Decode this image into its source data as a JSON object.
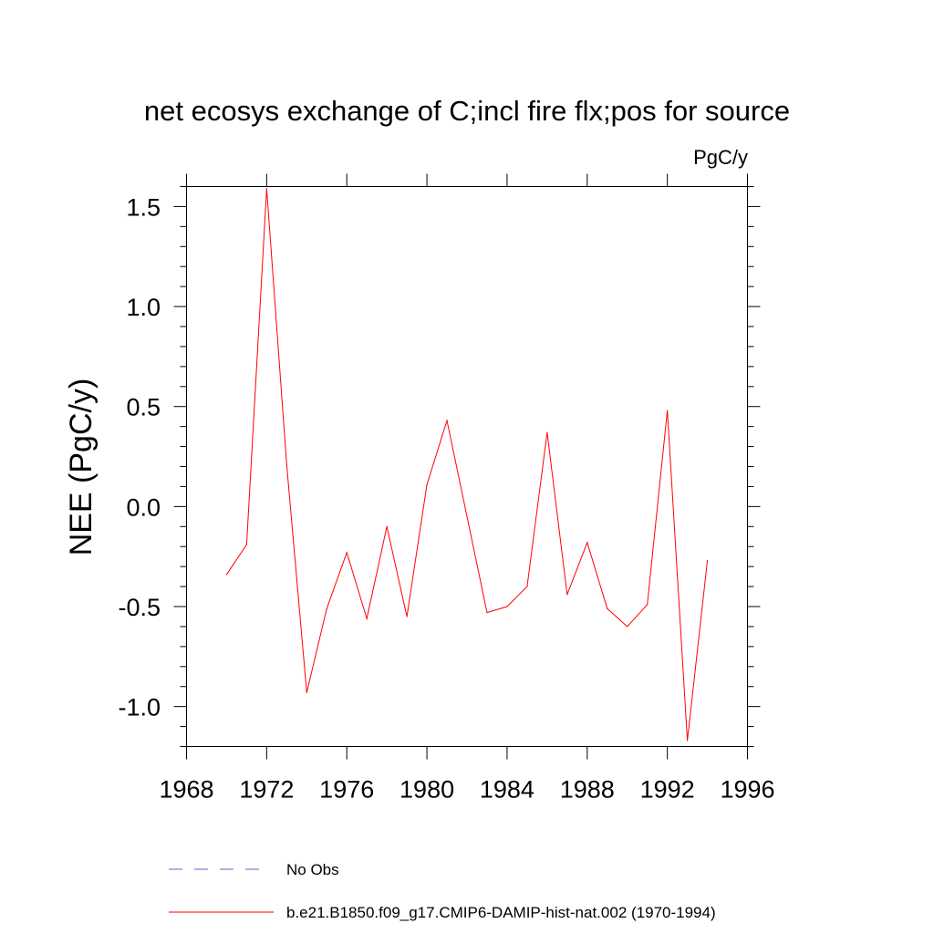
{
  "chart_data": {
    "type": "line",
    "title": "net ecosys exchange of C;incl fire flx;pos for source",
    "units_label": "PgC/y",
    "ylabel": "NEE  (PgC/y)",
    "xlabel": "",
    "xlim": [
      1968,
      1996
    ],
    "ylim": [
      -1.2,
      1.6
    ],
    "x_ticks": [
      1968,
      1972,
      1976,
      1980,
      1984,
      1988,
      1992,
      1996
    ],
    "x_tick_labels": [
      "1968",
      "1972",
      "1976",
      "1980",
      "1984",
      "1988",
      "1992",
      "1996"
    ],
    "y_ticks": [
      -1.0,
      -0.5,
      0.0,
      0.5,
      1.0,
      1.5
    ],
    "y_tick_labels": [
      "-1.0",
      "-0.5",
      "0.0",
      "0.5",
      "1.0",
      "1.5"
    ],
    "grid": false,
    "legend_position": "bottom",
    "series": [
      {
        "name": "b.e21.B1850.f09_g17.CMIP6-DAMIP-hist-nat.002 (1970-1994)",
        "color": "#ff0000",
        "style": "solid",
        "x": [
          1970,
          1971,
          1972,
          1973,
          1974,
          1975,
          1976,
          1977,
          1978,
          1979,
          1980,
          1981,
          1982,
          1983,
          1984,
          1985,
          1986,
          1987,
          1988,
          1989,
          1990,
          1991,
          1992,
          1993,
          1994
        ],
        "y": [
          -0.34,
          -0.19,
          1.59,
          0.21,
          -0.93,
          -0.51,
          -0.23,
          -0.56,
          -0.1,
          -0.55,
          0.11,
          0.43,
          -0.05,
          -0.53,
          -0.5,
          -0.4,
          0.37,
          -0.44,
          -0.18,
          -0.51,
          -0.6,
          -0.49,
          0.48,
          -1.17,
          -0.27
        ]
      }
    ],
    "legend": [
      {
        "label": "No Obs",
        "color": "#6666cc",
        "style": "dashed"
      },
      {
        "label": "b.e21.B1850.f09_g17.CMIP6-DAMIP-hist-nat.002 (1970-1994)",
        "color": "#ff0000",
        "style": "solid"
      }
    ]
  }
}
